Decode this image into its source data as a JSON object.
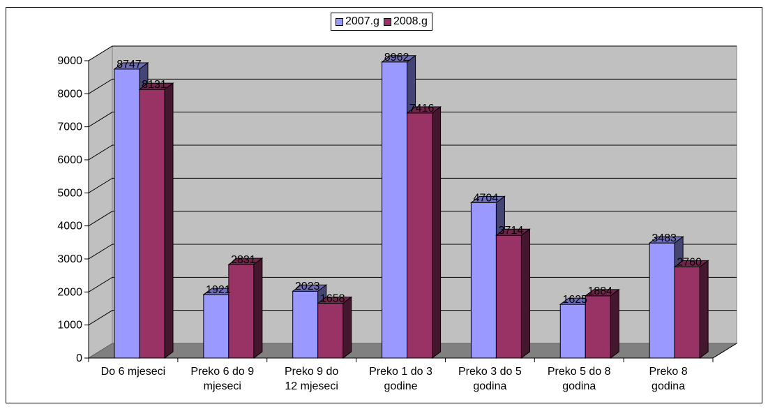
{
  "chart_data": {
    "type": "bar",
    "categories": [
      "Do 6 mjeseci",
      "Preko 6 do 9 mjeseci",
      "Preko 9 do 12 mjeseci",
      "Preko 1 do 3 godine",
      "Preko 3 do 5 godina",
      "Preko 5 do 8 godina",
      "Preko 8 godina"
    ],
    "category_lines": [
      [
        "Do 6 mjeseci"
      ],
      [
        "Preko 6 do 9",
        "mjeseci"
      ],
      [
        "Preko 9 do",
        "12 mjeseci"
      ],
      [
        "Preko 1 do 3",
        "godine"
      ],
      [
        "Preko 3 do 5",
        "godina"
      ],
      [
        "Preko 5 do 8",
        "godina"
      ],
      [
        "Preko 8",
        "godina"
      ]
    ],
    "series": [
      {
        "name": "2007.g",
        "color": "#9999ff",
        "values": [
          8747,
          1921,
          2023,
          8962,
          4704,
          1625,
          3483
        ]
      },
      {
        "name": "2008.g",
        "color": "#993366",
        "values": [
          8131,
          2831,
          1658,
          7416,
          3714,
          1884,
          2760
        ]
      }
    ],
    "ylim": [
      0,
      9000
    ],
    "yticks": [
      0,
      1000,
      2000,
      3000,
      4000,
      5000,
      6000,
      7000,
      8000,
      9000
    ],
    "grid": true,
    "legend_position": "top",
    "wall_color": "#c0c0c0",
    "floor_color": "#808080",
    "title": "",
    "xlabel": "",
    "ylabel": ""
  }
}
